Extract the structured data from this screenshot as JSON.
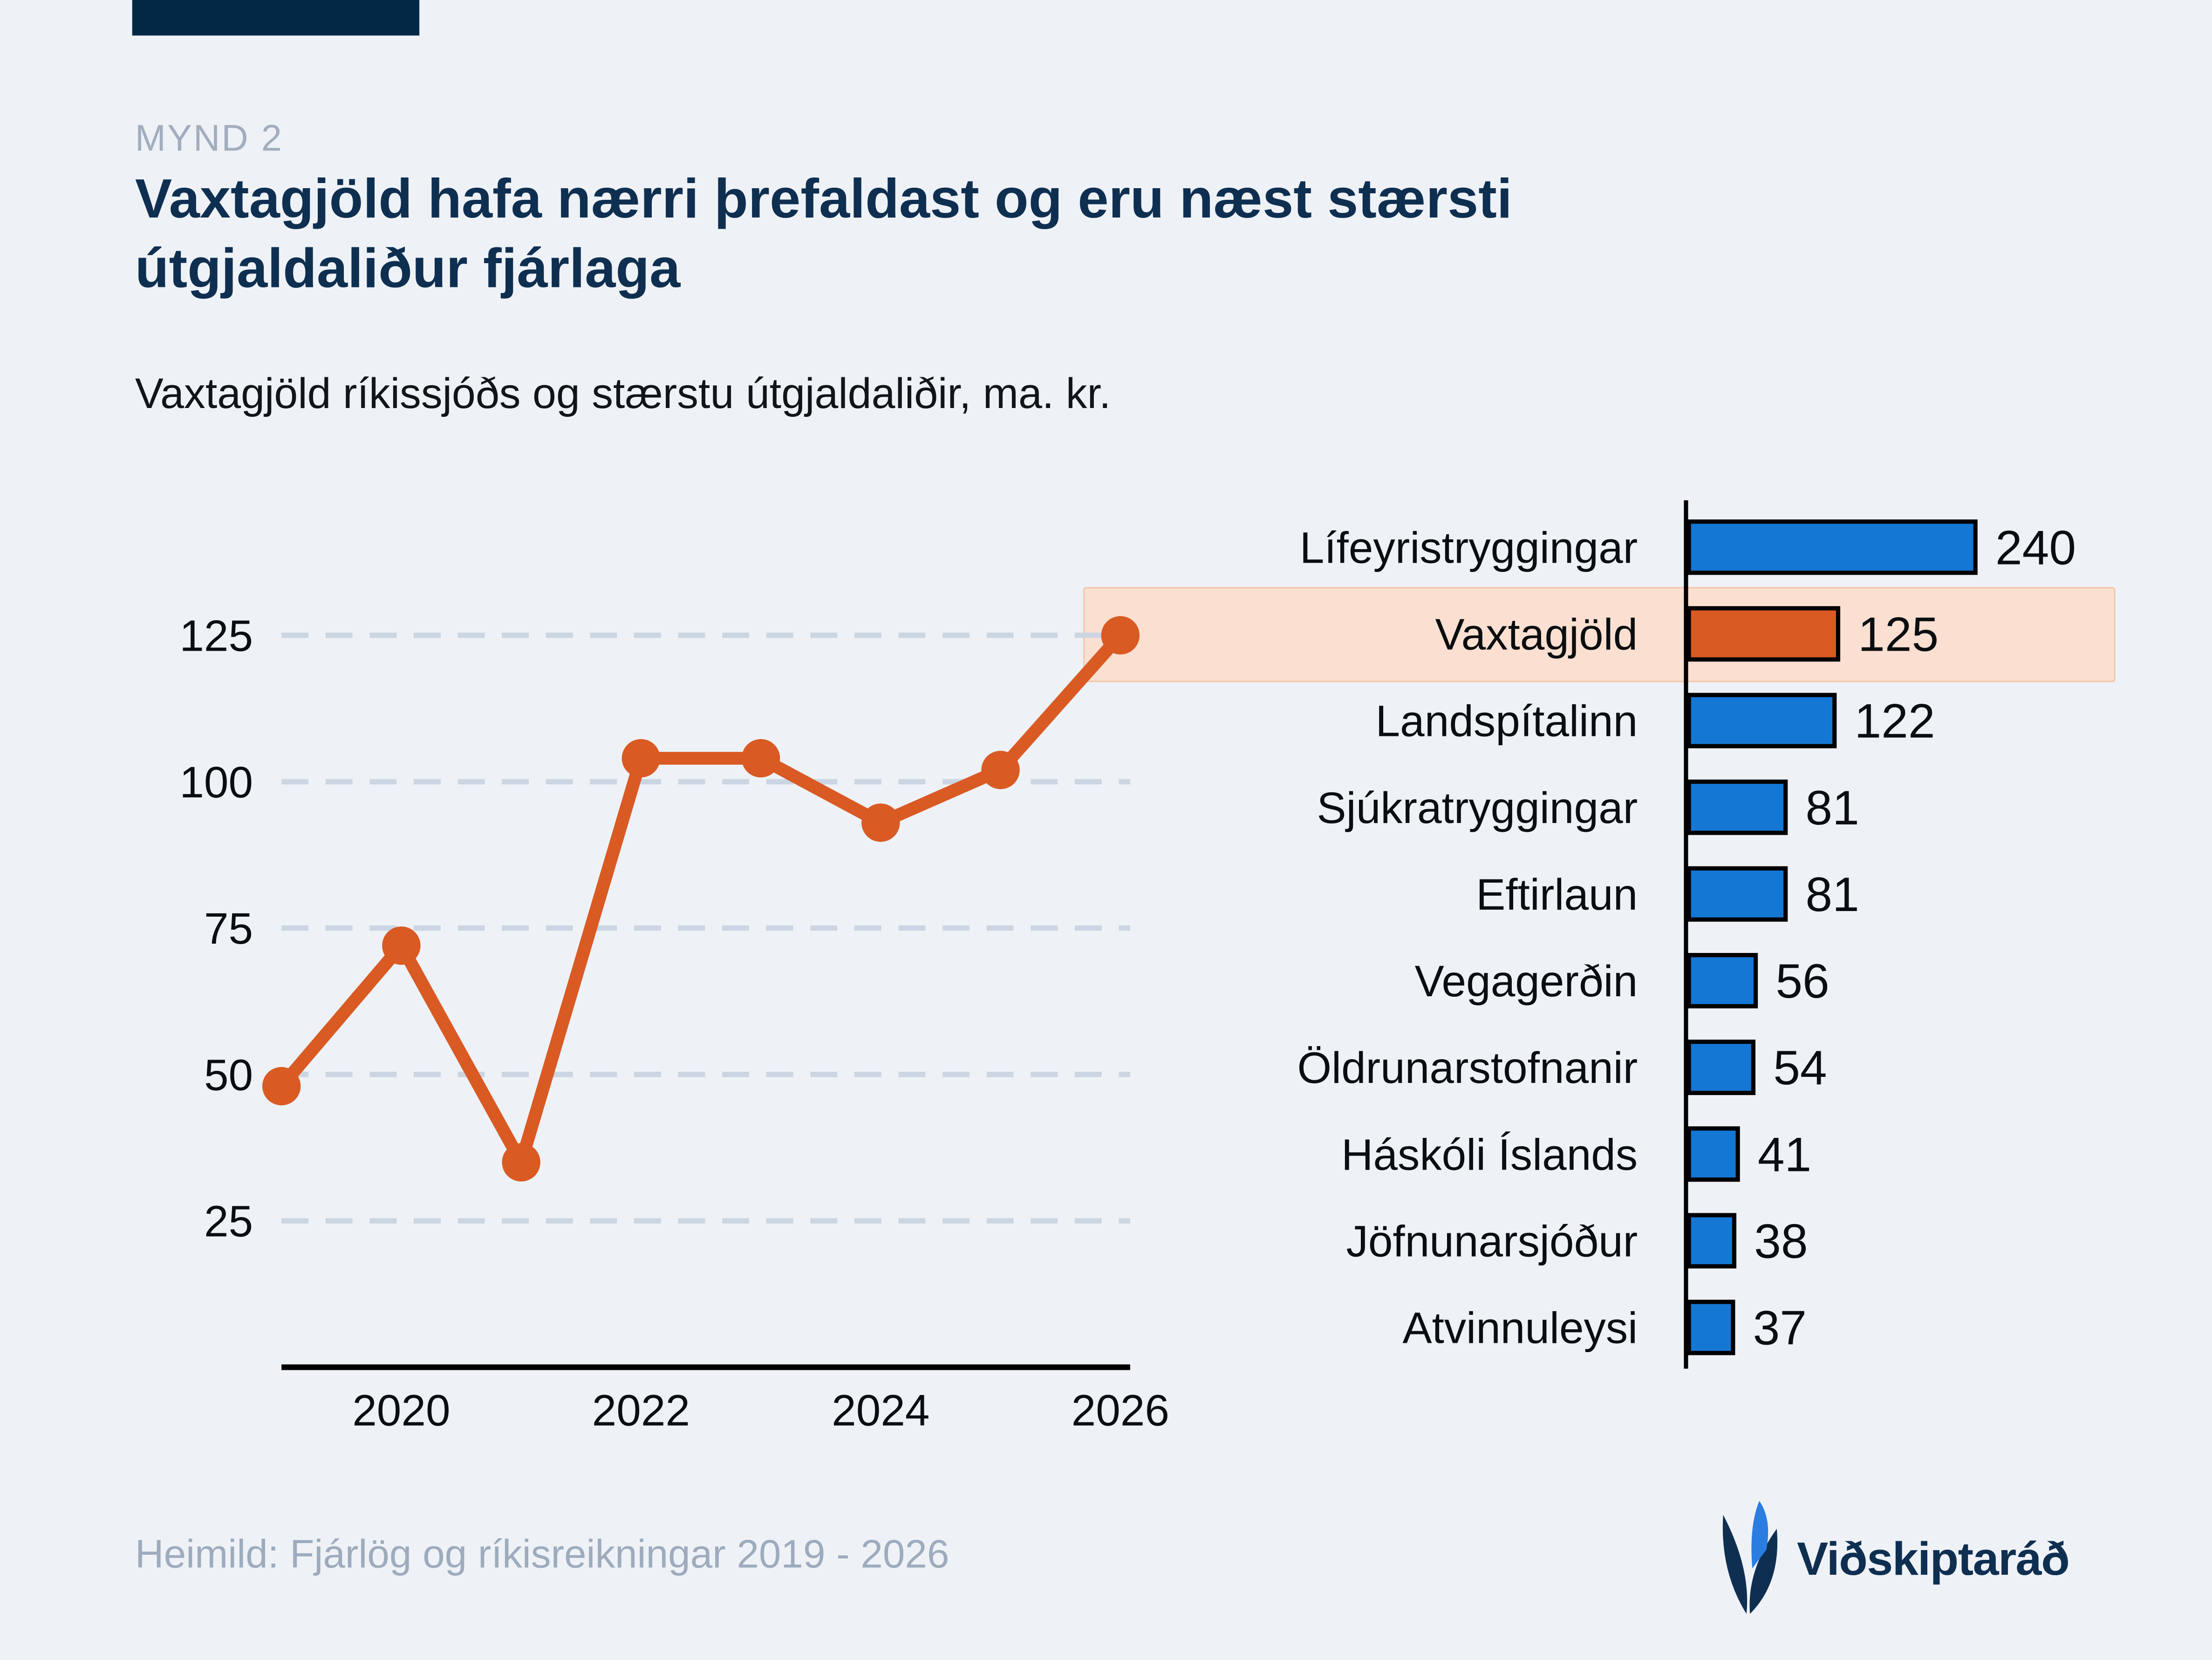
{
  "header": {
    "kicker": "MYND 2",
    "title": "Vaxtagjöld hafa nærri þrefaldast og eru næst stærsti útgjaldaliður fjárlaga",
    "title_line1": "Vaxtagjöld hafa nærri þrefaldast og eru næst stærsti",
    "title_line2": "útgjaldaliður fjárlaga",
    "subtitle": "Vaxtagjöld ríkissjóðs og stærstu útgjaldaliðir, ma. kr."
  },
  "footer": {
    "source": "Heimild: Fjárlög og ríkisreikningar 2019 - 2026",
    "brand": "Viðskiptaráð"
  },
  "colors": {
    "background": "#eef2f7",
    "navy": "#0f2f51",
    "topbar": "#032845",
    "orange": "#d95a23",
    "blue": "#1477d4",
    "highlight_fill": "#fbe0d1",
    "highlight_border": "#f3c5ab",
    "grid": "#ccd6e2",
    "muted": "#9dabbd",
    "kicker": "#a2adbd",
    "ink": "#0b0e10"
  },
  "chart_data": [
    {
      "type": "line",
      "series_name": "Vaxtagjöld ríkissjóðs, ma. kr.",
      "x": [
        2019,
        2020,
        2021,
        2022,
        2023,
        2024,
        2025,
        2026
      ],
      "values": [
        48,
        72,
        35,
        104,
        104,
        93,
        102,
        125
      ],
      "x_tick_labels": [
        2020,
        2022,
        2024,
        2026
      ],
      "y_ticks": [
        125,
        100,
        75,
        50,
        25
      ],
      "ylim": [
        0,
        140
      ],
      "grid": "dashed horizontal gridlines",
      "legend_position": "none",
      "line_color": "#d95a23",
      "marker": "circle",
      "highlight_last_point": true
    },
    {
      "type": "bar",
      "orientation": "horizontal",
      "categories": [
        "Lífeyristryggingar",
        "Vaxtagjöld",
        "Landspítalinn",
        "Sjúkratryggingar",
        "Eftirlaun",
        "Vegagerðin",
        "Öldrunarstofnanir",
        "Háskóli Íslands",
        "Jöfnunarsjóður",
        "Atvinnuleysi"
      ],
      "values": [
        240,
        125,
        122,
        81,
        81,
        56,
        54,
        41,
        38,
        37
      ],
      "highlighted_category": "Vaxtagjöld",
      "bar_color": "#1477d4",
      "highlight_bar_color": "#d95a23",
      "value_labels": true,
      "xlim": [
        0,
        260
      ]
    }
  ]
}
